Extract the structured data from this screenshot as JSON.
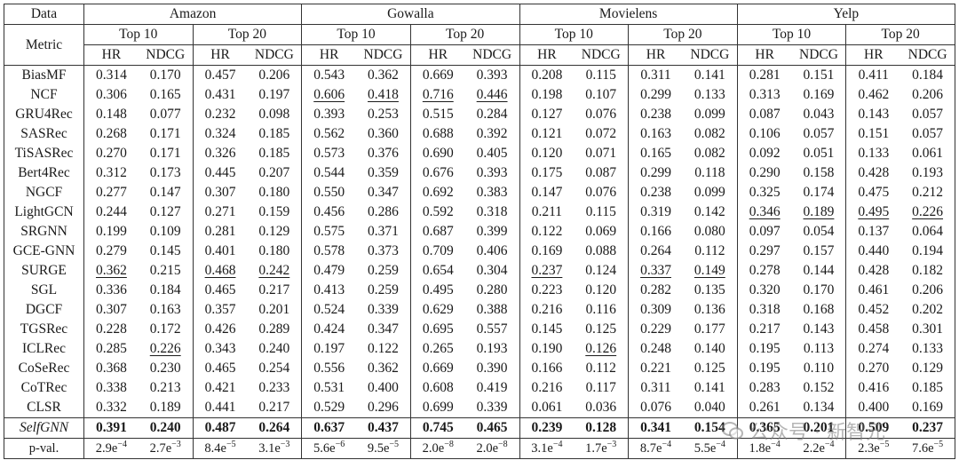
{
  "header": {
    "data_label": "Data",
    "metric_label": "Metric",
    "datasets": [
      "Amazon",
      "Gowalla",
      "Movielens",
      "Yelp"
    ],
    "groups": [
      "Top 10",
      "Top 20"
    ],
    "metrics": [
      "HR",
      "NDCG"
    ]
  },
  "rows": [
    {
      "name": "BiasMF",
      "values": [
        "0.314",
        "0.170",
        "0.457",
        "0.206",
        "0.543",
        "0.362",
        "0.669",
        "0.393",
        "0.208",
        "0.115",
        "0.311",
        "0.141",
        "0.281",
        "0.151",
        "0.411",
        "0.184"
      ],
      "underline": []
    },
    {
      "name": "NCF",
      "values": [
        "0.306",
        "0.165",
        "0.431",
        "0.197",
        "0.606",
        "0.418",
        "0.716",
        "0.446",
        "0.198",
        "0.107",
        "0.299",
        "0.133",
        "0.313",
        "0.169",
        "0.462",
        "0.206"
      ],
      "underline": [
        4,
        5,
        6,
        7
      ]
    },
    {
      "name": "GRU4Rec",
      "values": [
        "0.148",
        "0.077",
        "0.232",
        "0.098",
        "0.393",
        "0.253",
        "0.515",
        "0.284",
        "0.127",
        "0.076",
        "0.238",
        "0.099",
        "0.087",
        "0.043",
        "0.143",
        "0.057"
      ],
      "underline": []
    },
    {
      "name": "SASRec",
      "values": [
        "0.268",
        "0.171",
        "0.324",
        "0.185",
        "0.562",
        "0.360",
        "0.688",
        "0.392",
        "0.121",
        "0.072",
        "0.163",
        "0.082",
        "0.106",
        "0.057",
        "0.151",
        "0.057"
      ],
      "underline": []
    },
    {
      "name": "TiSASRec",
      "values": [
        "0.270",
        "0.171",
        "0.326",
        "0.185",
        "0.573",
        "0.376",
        "0.690",
        "0.405",
        "0.120",
        "0.071",
        "0.165",
        "0.082",
        "0.092",
        "0.051",
        "0.133",
        "0.061"
      ],
      "underline": []
    },
    {
      "name": "Bert4Rec",
      "values": [
        "0.312",
        "0.173",
        "0.445",
        "0.207",
        "0.544",
        "0.359",
        "0.676",
        "0.393",
        "0.175",
        "0.087",
        "0.299",
        "0.118",
        "0.290",
        "0.158",
        "0.428",
        "0.193"
      ],
      "underline": []
    },
    {
      "name": "NGCF",
      "values": [
        "0.277",
        "0.147",
        "0.307",
        "0.180",
        "0.550",
        "0.347",
        "0.692",
        "0.383",
        "0.147",
        "0.076",
        "0.238",
        "0.099",
        "0.325",
        "0.174",
        "0.475",
        "0.212"
      ],
      "underline": []
    },
    {
      "name": "LightGCN",
      "values": [
        "0.244",
        "0.127",
        "0.271",
        "0.159",
        "0.456",
        "0.286",
        "0.592",
        "0.318",
        "0.211",
        "0.115",
        "0.319",
        "0.142",
        "0.346",
        "0.189",
        "0.495",
        "0.226"
      ],
      "underline": [
        12,
        13,
        14,
        15
      ]
    },
    {
      "name": "SRGNN",
      "values": [
        "0.199",
        "0.109",
        "0.281",
        "0.129",
        "0.575",
        "0.371",
        "0.687",
        "0.399",
        "0.122",
        "0.069",
        "0.166",
        "0.080",
        "0.097",
        "0.054",
        "0.137",
        "0.064"
      ],
      "underline": []
    },
    {
      "name": "GCE-GNN",
      "values": [
        "0.279",
        "0.145",
        "0.401",
        "0.180",
        "0.578",
        "0.373",
        "0.709",
        "0.406",
        "0.169",
        "0.088",
        "0.264",
        "0.112",
        "0.297",
        "0.157",
        "0.440",
        "0.194"
      ],
      "underline": []
    },
    {
      "name": "SURGE",
      "values": [
        "0.362",
        "0.215",
        "0.468",
        "0.242",
        "0.479",
        "0.259",
        "0.654",
        "0.304",
        "0.237",
        "0.124",
        "0.337",
        "0.149",
        "0.278",
        "0.144",
        "0.428",
        "0.182"
      ],
      "underline": [
        0,
        2,
        3,
        8,
        10,
        11
      ]
    },
    {
      "name": "SGL",
      "values": [
        "0.336",
        "0.184",
        "0.465",
        "0.217",
        "0.413",
        "0.259",
        "0.495",
        "0.280",
        "0.223",
        "0.120",
        "0.282",
        "0.135",
        "0.320",
        "0.170",
        "0.461",
        "0.206"
      ],
      "underline": []
    },
    {
      "name": "DGCF",
      "values": [
        "0.307",
        "0.163",
        "0.357",
        "0.201",
        "0.524",
        "0.339",
        "0.629",
        "0.388",
        "0.216",
        "0.116",
        "0.309",
        "0.136",
        "0.318",
        "0.168",
        "0.452",
        "0.202"
      ],
      "underline": []
    },
    {
      "name": "TGSRec",
      "values": [
        "0.228",
        "0.172",
        "0.426",
        "0.289",
        "0.424",
        "0.347",
        "0.695",
        "0.557",
        "0.145",
        "0.125",
        "0.229",
        "0.177",
        "0.217",
        "0.143",
        "0.458",
        "0.301"
      ],
      "underline": []
    },
    {
      "name": "ICLRec",
      "values": [
        "0.285",
        "0.226",
        "0.343",
        "0.240",
        "0.197",
        "0.122",
        "0.265",
        "0.193",
        "0.190",
        "0.126",
        "0.248",
        "0.140",
        "0.195",
        "0.113",
        "0.274",
        "0.133"
      ],
      "underline": [
        1,
        9
      ]
    },
    {
      "name": "CoSeRec",
      "values": [
        "0.368",
        "0.230",
        "0.465",
        "0.254",
        "0.556",
        "0.362",
        "0.669",
        "0.390",
        "0.166",
        "0.112",
        "0.221",
        "0.125",
        "0.195",
        "0.110",
        "0.270",
        "0.129"
      ],
      "underline": []
    },
    {
      "name": "CoTRec",
      "values": [
        "0.338",
        "0.213",
        "0.421",
        "0.233",
        "0.531",
        "0.400",
        "0.608",
        "0.419",
        "0.216",
        "0.117",
        "0.311",
        "0.141",
        "0.283",
        "0.152",
        "0.416",
        "0.185"
      ],
      "underline": []
    },
    {
      "name": "CLSR",
      "values": [
        "0.332",
        "0.189",
        "0.441",
        "0.217",
        "0.529",
        "0.296",
        "0.699",
        "0.339",
        "0.061",
        "0.036",
        "0.076",
        "0.040",
        "0.261",
        "0.134",
        "0.400",
        "0.169"
      ],
      "underline": []
    }
  ],
  "ours": {
    "name": "SelfGNN",
    "values": [
      "0.391",
      "0.240",
      "0.487",
      "0.264",
      "0.637",
      "0.437",
      "0.745",
      "0.465",
      "0.239",
      "0.128",
      "0.341",
      "0.154",
      "0.365",
      "0.201",
      "0.509",
      "0.237"
    ]
  },
  "pval": {
    "label": "p-val.",
    "values": [
      {
        "m": "2.9e",
        "e": "−4"
      },
      {
        "m": "2.7e",
        "e": "−3"
      },
      {
        "m": "8.4e",
        "e": "−5"
      },
      {
        "m": "3.1e",
        "e": "−3"
      },
      {
        "m": "5.6e",
        "e": "−6"
      },
      {
        "m": "9.5e",
        "e": "−5"
      },
      {
        "m": "2.0e",
        "e": "−8"
      },
      {
        "m": "2.0e",
        "e": "−8"
      },
      {
        "m": "3.1e",
        "e": "−4"
      },
      {
        "m": "1.7e",
        "e": "−3"
      },
      {
        "m": "8.7e",
        "e": "−4"
      },
      {
        "m": "5.5e",
        "e": "−4"
      },
      {
        "m": "1.8e",
        "e": "−4"
      },
      {
        "m": "2.2e",
        "e": "−4"
      },
      {
        "m": "2.3e",
        "e": "−5"
      },
      {
        "m": "7.6e",
        "e": "−5"
      }
    ]
  },
  "watermark": "公众号 · 新智元"
}
